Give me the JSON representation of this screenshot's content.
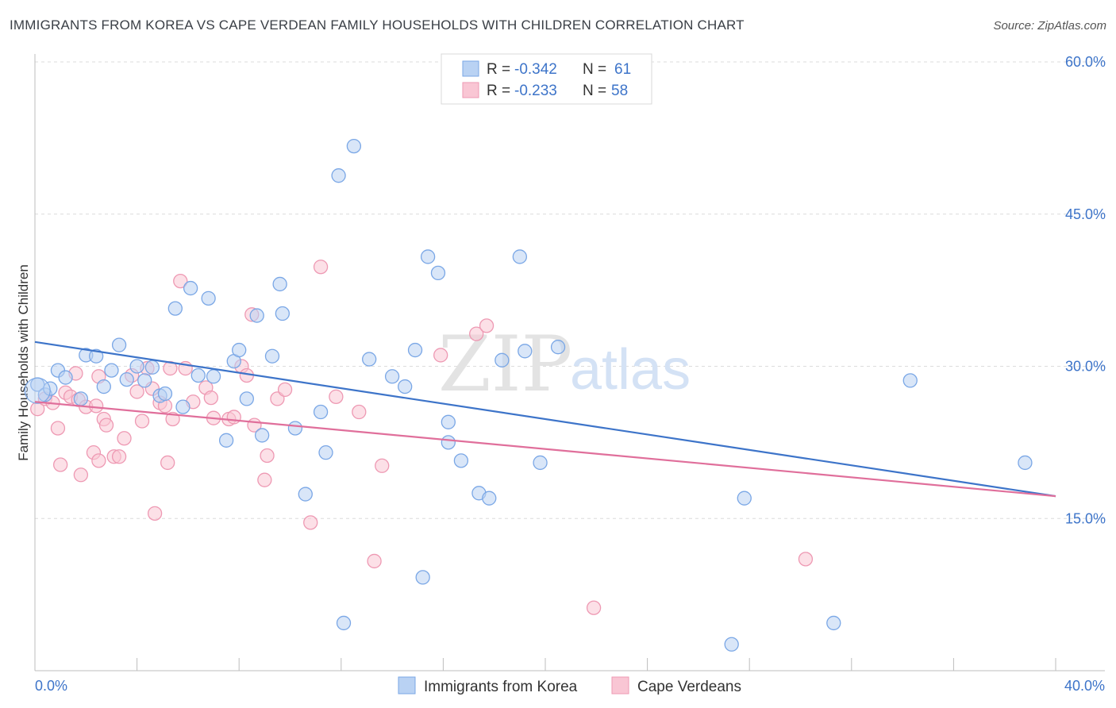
{
  "header": {
    "title": "IMMIGRANTS FROM KOREA VS CAPE VERDEAN FAMILY HOUSEHOLDS WITH CHILDREN CORRELATION CHART",
    "source": "Source: ZipAtlas.com"
  },
  "watermark": {
    "zip": "ZIP",
    "atlas": "atlas"
  },
  "legend": {
    "r_label": "R =",
    "n_label": "N =",
    "rows": [
      {
        "r": "-0.342",
        "n": "61",
        "fill": "#b9d2f3",
        "stroke": "#7aa7e6"
      },
      {
        "r": "-0.233",
        "n": "58",
        "fill": "#f9c6d4",
        "stroke": "#ee99b3"
      }
    ]
  },
  "bottom_legend": [
    {
      "label": "Immigrants from Korea",
      "fill": "#b9d2f3",
      "stroke": "#7aa7e6"
    },
    {
      "label": "Cape Verdeans",
      "fill": "#f9c6d4",
      "stroke": "#ee99b3"
    }
  ],
  "chart_data": {
    "type": "scatter",
    "ylabel": "Family Households with Children",
    "xlabel": "",
    "xlim": [
      0,
      40
    ],
    "ylim": [
      0,
      60
    ],
    "x_tick_labels": [
      "0.0%",
      "40.0%"
    ],
    "y_tick_labels": [
      {
        "value": 15,
        "label": "15.0%"
      },
      {
        "value": 30,
        "label": "30.0%"
      },
      {
        "value": 45,
        "label": "45.0%"
      },
      {
        "value": 60,
        "label": "60.0%"
      }
    ],
    "grid": true,
    "legend_position": "top-center",
    "colors": {
      "korea": "#3d74c9",
      "cape": "#e06f9b"
    },
    "series": [
      {
        "name": "Immigrants from Korea",
        "point_fill": "#b9d2f3",
        "point_stroke": "#7aa7e6",
        "line_color": "#3d74c9",
        "trend": {
          "x0": 0,
          "y0": 32.4,
          "x1": 40,
          "y1": 17.2
        },
        "points": [
          [
            0.1,
            28.2
          ],
          [
            0.4,
            27.2
          ],
          [
            0.6,
            27.8
          ],
          [
            0.9,
            29.6
          ],
          [
            1.2,
            28.9
          ],
          [
            1.8,
            26.8
          ],
          [
            2.0,
            31.1
          ],
          [
            2.4,
            31.0
          ],
          [
            2.7,
            28.0
          ],
          [
            3.0,
            29.6
          ],
          [
            3.3,
            32.1
          ],
          [
            3.6,
            28.7
          ],
          [
            4.0,
            30.0
          ],
          [
            4.3,
            28.6
          ],
          [
            4.6,
            29.9
          ],
          [
            4.9,
            27.1
          ],
          [
            5.1,
            27.3
          ],
          [
            5.5,
            35.7
          ],
          [
            5.8,
            26.0
          ],
          [
            6.1,
            37.7
          ],
          [
            6.4,
            29.1
          ],
          [
            6.8,
            36.7
          ],
          [
            7.0,
            29.0
          ],
          [
            7.5,
            22.7
          ],
          [
            7.8,
            30.5
          ],
          [
            8.0,
            31.6
          ],
          [
            8.3,
            26.8
          ],
          [
            8.7,
            35.0
          ],
          [
            8.9,
            23.2
          ],
          [
            9.3,
            31.0
          ],
          [
            9.6,
            38.1
          ],
          [
            9.7,
            35.2
          ],
          [
            10.2,
            23.9
          ],
          [
            10.6,
            17.4
          ],
          [
            11.2,
            25.5
          ],
          [
            11.4,
            21.5
          ],
          [
            11.9,
            48.8
          ],
          [
            12.1,
            4.7
          ],
          [
            12.5,
            51.7
          ],
          [
            13.1,
            30.7
          ],
          [
            14.0,
            29.0
          ],
          [
            14.5,
            28.0
          ],
          [
            14.9,
            31.6
          ],
          [
            15.2,
            9.2
          ],
          [
            15.4,
            40.8
          ],
          [
            15.8,
            39.2
          ],
          [
            16.2,
            24.5
          ],
          [
            16.2,
            22.5
          ],
          [
            16.7,
            20.7
          ],
          [
            17.4,
            17.5
          ],
          [
            17.8,
            17.0
          ],
          [
            18.3,
            30.6
          ],
          [
            19.0,
            40.8
          ],
          [
            19.2,
            31.5
          ],
          [
            19.8,
            20.5
          ],
          [
            20.5,
            31.9
          ],
          [
            27.8,
            17.0
          ],
          [
            27.3,
            2.6
          ],
          [
            31.3,
            4.7
          ],
          [
            34.3,
            28.6
          ],
          [
            38.8,
            20.5
          ]
        ]
      },
      {
        "name": "Cape Verdeans",
        "point_fill": "#f9c6d4",
        "point_stroke": "#ee99b3",
        "line_color": "#e06f9b",
        "trend": {
          "x0": 0,
          "y0": 26.5,
          "x1": 40,
          "y1": 17.2
        },
        "points": [
          [
            0.1,
            25.8
          ],
          [
            0.4,
            26.8
          ],
          [
            0.7,
            26.4
          ],
          [
            0.9,
            23.9
          ],
          [
            1.0,
            20.3
          ],
          [
            1.2,
            27.4
          ],
          [
            1.4,
            27.0
          ],
          [
            1.6,
            29.3
          ],
          [
            1.7,
            26.7
          ],
          [
            1.8,
            19.3
          ],
          [
            2.0,
            26.0
          ],
          [
            2.4,
            26.1
          ],
          [
            2.3,
            21.5
          ],
          [
            2.5,
            20.7
          ],
          [
            2.7,
            24.8
          ],
          [
            2.8,
            24.2
          ],
          [
            3.1,
            21.1
          ],
          [
            3.3,
            21.1
          ],
          [
            3.5,
            22.9
          ],
          [
            3.8,
            29.1
          ],
          [
            4.0,
            27.5
          ],
          [
            4.2,
            24.6
          ],
          [
            4.4,
            29.8
          ],
          [
            4.6,
            27.8
          ],
          [
            4.7,
            15.5
          ],
          [
            4.9,
            26.4
          ],
          [
            5.1,
            26.1
          ],
          [
            5.2,
            20.5
          ],
          [
            5.4,
            24.8
          ],
          [
            5.7,
            38.4
          ],
          [
            5.9,
            29.8
          ],
          [
            6.2,
            26.5
          ],
          [
            6.7,
            27.9
          ],
          [
            7.0,
            24.9
          ],
          [
            7.6,
            24.8
          ],
          [
            7.8,
            25.0
          ],
          [
            8.1,
            30.0
          ],
          [
            8.3,
            29.1
          ],
          [
            8.5,
            35.1
          ],
          [
            8.6,
            24.2
          ],
          [
            9.0,
            18.8
          ],
          [
            9.1,
            21.2
          ],
          [
            9.5,
            26.8
          ],
          [
            9.8,
            27.7
          ],
          [
            10.8,
            14.6
          ],
          [
            11.2,
            39.8
          ],
          [
            11.8,
            27.0
          ],
          [
            12.7,
            25.5
          ],
          [
            13.3,
            10.8
          ],
          [
            13.6,
            20.2
          ],
          [
            15.9,
            31.1
          ],
          [
            17.3,
            33.2
          ],
          [
            17.7,
            34.0
          ],
          [
            21.9,
            6.2
          ],
          [
            30.2,
            11.0
          ],
          [
            5.3,
            29.8
          ],
          [
            2.5,
            29.0
          ],
          [
            6.9,
            26.9
          ]
        ]
      }
    ]
  }
}
